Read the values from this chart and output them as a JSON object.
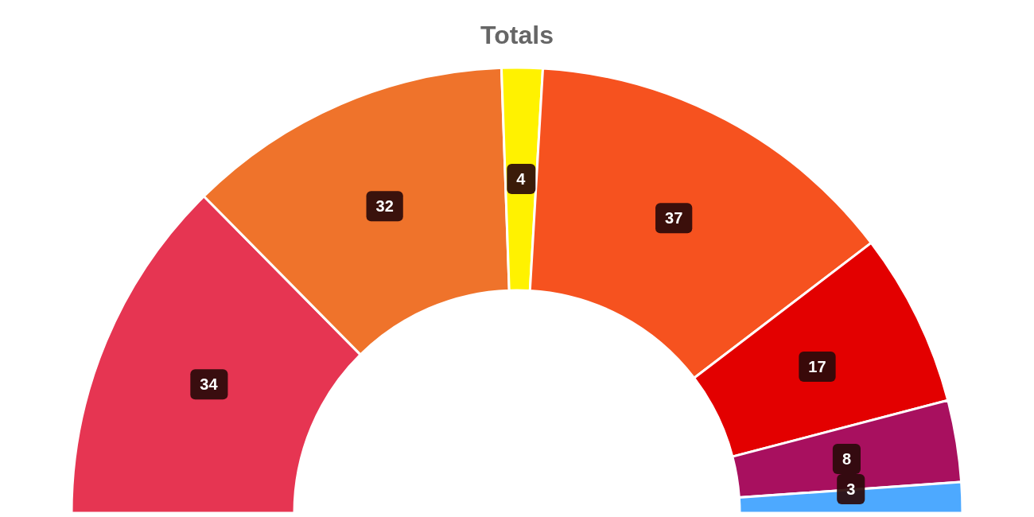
{
  "chart_data": {
    "type": "donut",
    "title": "Totals",
    "categories": [
      null,
      null,
      null,
      null,
      null,
      null,
      null
    ],
    "values": [
      34,
      32,
      4,
      37,
      17,
      8,
      3
    ],
    "colors": [
      "#e63552",
      "#ef732b",
      "#fff200",
      "#f6521f",
      "#e30000",
      "#a8105f",
      "#4da9ff"
    ],
    "data_labels": true
  }
}
